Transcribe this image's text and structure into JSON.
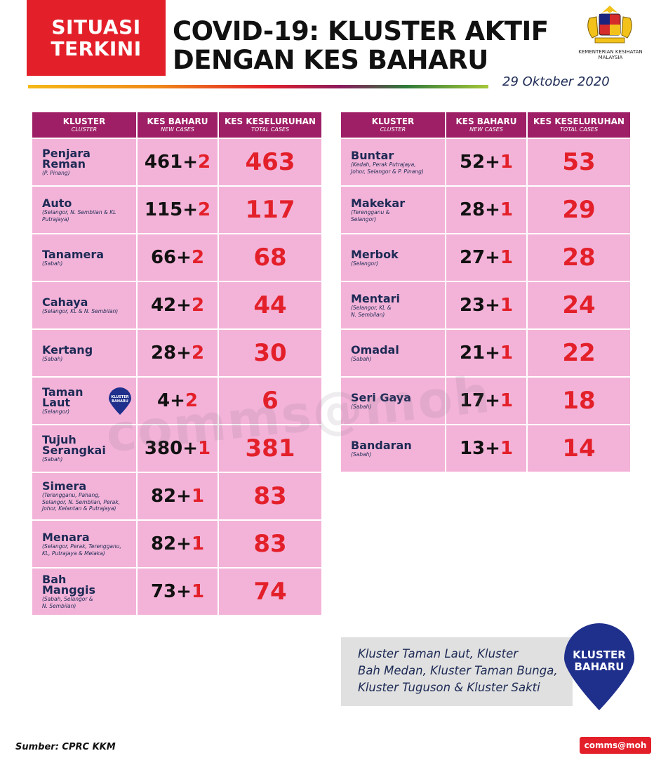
{
  "header": {
    "badge_line1": "SITUASI",
    "badge_line2": "TERKINI",
    "title_line1": "COVID-19: KLUSTER AKTIF",
    "title_line2": "DENGAN KES BAHARU",
    "ministry_line1": "KEMENTERIAN KESIHATAN",
    "ministry_line2": "MALAYSIA",
    "date": "29  Oktober 2020"
  },
  "table_headers": {
    "cluster": "KLUSTER",
    "cluster_sub": "CLUSTER",
    "new": "KES BAHARU",
    "new_sub": "NEW CASES",
    "total": "KES KESELURUHAN",
    "total_sub": "TOTAL CASES"
  },
  "left_table": [
    {
      "name_l1": "Penjara",
      "name_l2": "Reman",
      "states": "(P. Pinang)",
      "states_l2": "",
      "base": "461+",
      "inc": "2",
      "total": "463"
    },
    {
      "name_l1": "Auto",
      "name_l2": "",
      "states": "(Selangor,  N. Sembilan & KL",
      "states_l2": "Putrajaya)",
      "base": "115+",
      "inc": "2",
      "total": "117"
    },
    {
      "name_l1": "Tanamera",
      "name_l2": "",
      "states": "(Sabah)",
      "states_l2": "",
      "base": "66+",
      "inc": "2",
      "total": "68"
    },
    {
      "name_l1": "Cahaya",
      "name_l2": "",
      "states": "(Selangor, KL & N. Sembilan)",
      "states_l2": "",
      "base": "42+",
      "inc": "2",
      "total": "44"
    },
    {
      "name_l1": "Kertang",
      "name_l2": "",
      "states": "(Sabah)",
      "states_l2": "",
      "base": "28+",
      "inc": "2",
      "total": "30"
    },
    {
      "name_l1": "Taman",
      "name_l2": "Laut",
      "states": "(Selangor)",
      "states_l2": "",
      "base": "4+",
      "inc": "2",
      "total": "6"
    },
    {
      "name_l1": "Tujuh",
      "name_l2": "Serangkai",
      "states": "(Sabah)",
      "states_l2": "",
      "base": "380+",
      "inc": "1",
      "total": "381"
    },
    {
      "name_l1": "Simera",
      "name_l2": "",
      "states": "(Terengganu, Pahang,",
      "states_l2": "Selangor, N. Sembilan, Perak, Johor, Kelantan & Putrajaya)",
      "base": "82+",
      "inc": "1",
      "total": "83"
    },
    {
      "name_l1": "Menara",
      "name_l2": "",
      "states": "(Selangor, Perak, Terengganu,",
      "states_l2": "KL, Putrajaya & Melaka)",
      "base": "82+",
      "inc": "1",
      "total": "83"
    },
    {
      "name_l1": "Bah",
      "name_l2": "Manggis",
      "states": "(Sabah, Selangor &",
      "states_l2": "N. Sembilan)",
      "base": "73+",
      "inc": "1",
      "total": "74"
    }
  ],
  "right_table": [
    {
      "name_l1": "Buntar",
      "name_l2": "",
      "states": "(Kedah, Perak Putrajaya,",
      "states_l2": "Johor, Selangor & P. Pinang)",
      "base": "52+",
      "inc": "1",
      "total": "53"
    },
    {
      "name_l1": "Makekar",
      "name_l2": "",
      "states": "(Terengganu &",
      "states_l2": "Selangor)",
      "base": "28+",
      "inc": "1",
      "total": "29"
    },
    {
      "name_l1": "Merbok",
      "name_l2": "",
      "states": "(Selangor)",
      "states_l2": "",
      "base": "27+",
      "inc": "1",
      "total": "28"
    },
    {
      "name_l1": "Mentari",
      "name_l2": "",
      "states": "(Selangor, KL &",
      "states_l2": "N. Sembilan)",
      "base": "23+",
      "inc": "1",
      "total": "24"
    },
    {
      "name_l1": "Omadal",
      "name_l2": "",
      "states": "(Sabah)",
      "states_l2": "",
      "base": "21+",
      "inc": "1",
      "total": "22"
    },
    {
      "name_l1": "Seri Gaya",
      "name_l2": "",
      "states": "(Sabah)",
      "states_l2": "",
      "base": "17+",
      "inc": "1",
      "total": "18"
    },
    {
      "name_l1": "Bandaran",
      "name_l2": "",
      "states": "(Sabah)",
      "states_l2": "",
      "base": "13+",
      "inc": "1",
      "total": "14"
    }
  ],
  "mini_pin": {
    "line1": "KLUSTER",
    "line2": "BAHARU"
  },
  "new_clusters_note": {
    "line1": "Kluster Taman Laut, Kluster",
    "line2": "Bah Medan, Kluster Taman Bunga,",
    "line3": "Kluster Tuguson & Kluster Sakti"
  },
  "big_pin": {
    "line1": "KLUSTER",
    "line2": "BAHARU"
  },
  "footer": {
    "source": "Sumber: CPRC KKM",
    "handle": "comms@moh"
  },
  "watermark": "comms@moh",
  "colors": {
    "badge_red": "#e3202a",
    "header_magenta": "#9e1f66",
    "cell_pink": "#f3b3d8",
    "navy": "#1d2a55",
    "pin_blue": "#1f2f8c"
  }
}
